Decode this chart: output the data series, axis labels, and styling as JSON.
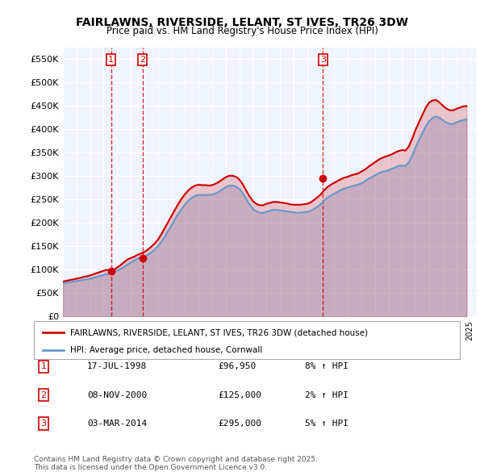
{
  "title": "FAIRLAWNS, RIVERSIDE, LELANT, ST IVES, TR26 3DW",
  "subtitle": "Price paid vs. HM Land Registry's House Price Index (HPI)",
  "legend_line1": "FAIRLAWNS, RIVERSIDE, LELANT, ST IVES, TR26 3DW (detached house)",
  "legend_line2": "HPI: Average price, detached house, Cornwall",
  "footer": "Contains HM Land Registry data © Crown copyright and database right 2025.\nThis data is licensed under the Open Government Licence v3.0.",
  "table": [
    {
      "num": "1",
      "date": "17-JUL-1998",
      "price": "£96,950",
      "hpi": "8% ↑ HPI"
    },
    {
      "num": "2",
      "date": "08-NOV-2000",
      "price": "£125,000",
      "hpi": "2% ↑ HPI"
    },
    {
      "num": "3",
      "date": "03-MAR-2014",
      "price": "£295,000",
      "hpi": "5% ↑ HPI"
    }
  ],
  "purchase_dates": [
    1998.54,
    2000.86,
    2014.17
  ],
  "purchase_prices": [
    96950,
    125000,
    295000
  ],
  "ylim": [
    0,
    575000
  ],
  "yticks": [
    0,
    50000,
    100000,
    150000,
    200000,
    250000,
    300000,
    350000,
    400000,
    450000,
    500000,
    550000
  ],
  "ytick_labels": [
    "£0",
    "£50K",
    "£100K",
    "£150K",
    "£200K",
    "£250K",
    "£300K",
    "£350K",
    "£400K",
    "£450K",
    "£500K",
    "£550K"
  ],
  "red_color": "#cc0000",
  "blue_color": "#6699cc",
  "background_plot": "#f0f4ff",
  "background_fig": "#ffffff",
  "grid_color": "#ffffff",
  "vline_color": "#cc0000",
  "hpi_series": {
    "years": [
      1995.0,
      1995.25,
      1995.5,
      1995.75,
      1996.0,
      1996.25,
      1996.5,
      1996.75,
      1997.0,
      1997.25,
      1997.5,
      1997.75,
      1998.0,
      1998.25,
      1998.5,
      1998.75,
      1999.0,
      1999.25,
      1999.5,
      1999.75,
      2000.0,
      2000.25,
      2000.5,
      2000.75,
      2001.0,
      2001.25,
      2001.5,
      2001.75,
      2002.0,
      2002.25,
      2002.5,
      2002.75,
      2003.0,
      2003.25,
      2003.5,
      2003.75,
      2004.0,
      2004.25,
      2004.5,
      2004.75,
      2005.0,
      2005.25,
      2005.5,
      2005.75,
      2006.0,
      2006.25,
      2006.5,
      2006.75,
      2007.0,
      2007.25,
      2007.5,
      2007.75,
      2008.0,
      2008.25,
      2008.5,
      2008.75,
      2009.0,
      2009.25,
      2009.5,
      2009.75,
      2010.0,
      2010.25,
      2010.5,
      2010.75,
      2011.0,
      2011.25,
      2011.5,
      2011.75,
      2012.0,
      2012.25,
      2012.5,
      2012.75,
      2013.0,
      2013.25,
      2013.5,
      2013.75,
      2014.0,
      2014.25,
      2014.5,
      2014.75,
      2015.0,
      2015.25,
      2015.5,
      2015.75,
      2016.0,
      2016.25,
      2016.5,
      2016.75,
      2017.0,
      2017.25,
      2017.5,
      2017.75,
      2018.0,
      2018.25,
      2018.5,
      2018.75,
      2019.0,
      2019.25,
      2019.5,
      2019.75,
      2020.0,
      2020.25,
      2020.5,
      2020.75,
      2021.0,
      2021.25,
      2021.5,
      2021.75,
      2022.0,
      2022.25,
      2022.5,
      2022.75,
      2023.0,
      2023.25,
      2023.5,
      2023.75,
      2024.0,
      2024.25,
      2024.5,
      2024.75
    ],
    "values": [
      72000,
      73000,
      74000,
      75000,
      76000,
      77000,
      78500,
      79500,
      81000,
      83000,
      85000,
      87000,
      89000,
      91000,
      93000,
      95000,
      98000,
      102000,
      106000,
      111000,
      116000,
      120000,
      124000,
      126000,
      128000,
      132000,
      137000,
      143000,
      150000,
      160000,
      171000,
      183000,
      195000,
      208000,
      220000,
      230000,
      240000,
      248000,
      254000,
      258000,
      260000,
      260000,
      260000,
      260000,
      261000,
      263000,
      267000,
      272000,
      277000,
      280000,
      280000,
      278000,
      273000,
      264000,
      252000,
      240000,
      230000,
      225000,
      222000,
      222000,
      224000,
      226000,
      228000,
      228000,
      227000,
      226000,
      225000,
      224000,
      223000,
      222000,
      222000,
      223000,
      224000,
      226000,
      230000,
      235000,
      240000,
      248000,
      254000,
      259000,
      263000,
      267000,
      271000,
      274000,
      276000,
      278000,
      280000,
      282000,
      285000,
      289000,
      294000,
      298000,
      302000,
      306000,
      309000,
      311000,
      313000,
      316000,
      319000,
      322000,
      323000,
      322000,
      330000,
      345000,
      362000,
      378000,
      393000,
      407000,
      418000,
      425000,
      428000,
      425000,
      420000,
      415000,
      412000,
      412000,
      415000,
      418000,
      420000,
      422000
    ]
  },
  "property_series": {
    "years": [
      1995.0,
      1995.25,
      1995.5,
      1995.75,
      1996.0,
      1996.25,
      1996.5,
      1996.75,
      1997.0,
      1997.25,
      1997.5,
      1997.75,
      1998.0,
      1998.25,
      1998.5,
      1998.75,
      1999.0,
      1999.25,
      1999.5,
      1999.75,
      2000.0,
      2000.25,
      2000.5,
      2000.75,
      2001.0,
      2001.25,
      2001.5,
      2001.75,
      2002.0,
      2002.25,
      2002.5,
      2002.75,
      2003.0,
      2003.25,
      2003.5,
      2003.75,
      2004.0,
      2004.25,
      2004.5,
      2004.75,
      2005.0,
      2005.25,
      2005.5,
      2005.75,
      2006.0,
      2006.25,
      2006.5,
      2006.75,
      2007.0,
      2007.25,
      2007.5,
      2007.75,
      2008.0,
      2008.25,
      2008.5,
      2008.75,
      2009.0,
      2009.25,
      2009.5,
      2009.75,
      2010.0,
      2010.25,
      2010.5,
      2010.75,
      2011.0,
      2011.25,
      2011.5,
      2011.75,
      2012.0,
      2012.25,
      2012.5,
      2012.75,
      2013.0,
      2013.25,
      2013.5,
      2013.75,
      2014.0,
      2014.25,
      2014.5,
      2014.75,
      2015.0,
      2015.25,
      2015.5,
      2015.75,
      2016.0,
      2016.25,
      2016.5,
      2016.75,
      2017.0,
      2017.25,
      2017.5,
      2017.75,
      2018.0,
      2018.25,
      2018.5,
      2018.75,
      2019.0,
      2019.25,
      2019.5,
      2019.75,
      2020.0,
      2020.25,
      2020.5,
      2020.75,
      2021.0,
      2021.25,
      2021.5,
      2021.75,
      2022.0,
      2022.25,
      2022.5,
      2022.75,
      2023.0,
      2023.25,
      2023.5,
      2023.75,
      2024.0,
      2024.25,
      2024.5,
      2024.75
    ],
    "values": [
      75000,
      76500,
      78000,
      79500,
      81000,
      82500,
      84500,
      86000,
      88000,
      90500,
      93000,
      95500,
      98000,
      100000,
      96950,
      100000,
      105000,
      110000,
      116000,
      122000,
      125000,
      128000,
      132000,
      135000,
      138000,
      143000,
      149000,
      156000,
      164000,
      176000,
      189000,
      202000,
      215000,
      228000,
      241000,
      252000,
      262000,
      270000,
      276000,
      280000,
      282000,
      281000,
      281000,
      280000,
      281000,
      284000,
      288000,
      293000,
      298000,
      301000,
      301000,
      299000,
      293000,
      283000,
      270000,
      257000,
      247000,
      241000,
      238000,
      238000,
      241000,
      243000,
      245000,
      245000,
      244000,
      243000,
      242000,
      240000,
      239000,
      239000,
      239000,
      240000,
      241000,
      244000,
      249000,
      255000,
      261000,
      270000,
      277000,
      282000,
      286000,
      290000,
      294000,
      297000,
      299000,
      302000,
      304000,
      306000,
      310000,
      314000,
      320000,
      325000,
      330000,
      335000,
      339000,
      342000,
      344000,
      347000,
      351000,
      354000,
      356000,
      355000,
      364000,
      381000,
      400000,
      416000,
      432000,
      447000,
      458000,
      462000,
      463000,
      458000,
      451000,
      445000,
      441000,
      441000,
      444000,
      447000,
      449000,
      450000
    ]
  }
}
